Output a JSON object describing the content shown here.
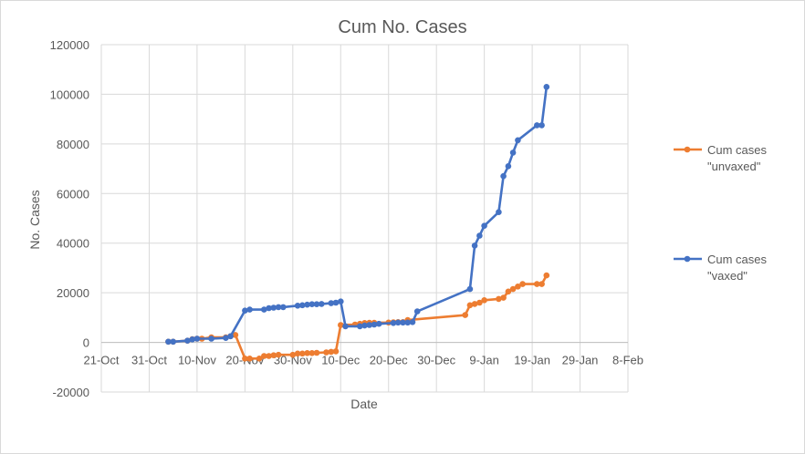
{
  "chart_data": {
    "type": "line",
    "title": "Cum No. Cases",
    "xlabel": "Date",
    "ylabel": "No. Cases",
    "x_ticks": [
      "21-Oct",
      "31-Oct",
      "10-Nov",
      "20-Nov",
      "30-Nov",
      "10-Dec",
      "20-Dec",
      "30-Dec",
      "9-Jan",
      "19-Jan",
      "29-Jan",
      "8-Feb"
    ],
    "y_ticks": [
      "120000",
      "100000",
      "80000",
      "60000",
      "40000",
      "20000",
      "0",
      "-20000"
    ],
    "ylim": [
      -20000,
      120000
    ],
    "grid": true,
    "legend_position": "right",
    "series": [
      {
        "name": "Cum cases \"unvaxed\"",
        "legend_lines": [
          "Cum cases",
          "\"unvaxed\""
        ],
        "color": "#ED7D31",
        "x": [
          "2021-11-04",
          "2021-11-05",
          "2021-11-08",
          "2021-11-09",
          "2021-11-10",
          "2021-11-11",
          "2021-11-13",
          "2021-11-16",
          "2021-11-17",
          "2021-11-18",
          "2021-11-20",
          "2021-11-21",
          "2021-11-23",
          "2021-11-24",
          "2021-11-25",
          "2021-11-26",
          "2021-11-27",
          "2021-11-30",
          "2021-12-01",
          "2021-12-02",
          "2021-12-03",
          "2021-12-04",
          "2021-12-05",
          "2021-12-07",
          "2021-12-08",
          "2021-12-09",
          "2021-12-10",
          "2021-12-13",
          "2021-12-14",
          "2021-12-15",
          "2021-12-16",
          "2021-12-17",
          "2021-12-20",
          "2021-12-21",
          "2021-12-22",
          "2021-12-23",
          "2021-12-24",
          "2022-01-05",
          "2022-01-06",
          "2022-01-07",
          "2022-01-08",
          "2022-01-09",
          "2022-01-12",
          "2022-01-13",
          "2022-01-14",
          "2022-01-15",
          "2022-01-16",
          "2022-01-17",
          "2022-01-20",
          "2022-01-21",
          "2022-01-22"
        ],
        "y": [
          300,
          300,
          700,
          1300,
          1500,
          1500,
          2000,
          2000,
          2500,
          3000,
          -6500,
          -6500,
          -6500,
          -5500,
          -5500,
          -5200,
          -5000,
          -5000,
          -4500,
          -4500,
          -4300,
          -4300,
          -4200,
          -4000,
          -3800,
          -3600,
          7000,
          7200,
          7500,
          7800,
          7900,
          7900,
          8000,
          8100,
          8200,
          8200,
          9000,
          11000,
          15000,
          15500,
          16000,
          17000,
          17500,
          18000,
          20500,
          21500,
          22500,
          23500,
          23500,
          23500,
          27000
        ]
      },
      {
        "name": "Cum cases \"vaxed\"",
        "legend_lines": [
          "Cum cases",
          "\"vaxed\""
        ],
        "color": "#4472C4",
        "x": [
          "2021-11-04",
          "2021-11-05",
          "2021-11-08",
          "2021-11-09",
          "2021-11-10",
          "2021-11-13",
          "2021-11-16",
          "2021-11-17",
          "2021-11-20",
          "2021-11-21",
          "2021-11-24",
          "2021-11-25",
          "2021-11-26",
          "2021-11-27",
          "2021-11-28",
          "2021-12-01",
          "2021-12-02",
          "2021-12-03",
          "2021-12-04",
          "2021-12-05",
          "2021-12-06",
          "2021-12-08",
          "2021-12-09",
          "2021-12-10",
          "2021-12-11",
          "2021-12-14",
          "2021-12-15",
          "2021-12-16",
          "2021-12-17",
          "2021-12-18",
          "2021-12-21",
          "2021-12-22",
          "2021-12-23",
          "2021-12-24",
          "2021-12-25",
          "2021-12-26",
          "2022-01-06",
          "2022-01-07",
          "2022-01-08",
          "2022-01-09",
          "2022-01-12",
          "2022-01-13",
          "2022-01-14",
          "2022-01-15",
          "2022-01-16",
          "2022-01-20",
          "2022-01-21",
          "2022-01-22"
        ],
        "y": [
          300,
          300,
          700,
          1200,
          1500,
          1500,
          1800,
          2500,
          12800,
          13200,
          13200,
          13800,
          14000,
          14200,
          14200,
          14800,
          15000,
          15200,
          15400,
          15400,
          15500,
          15800,
          16000,
          16500,
          6500,
          6500,
          6800,
          7000,
          7200,
          7500,
          7800,
          8000,
          8000,
          8000,
          8200,
          12500,
          21500,
          39000,
          43000,
          47000,
          52500,
          67000,
          71000,
          76500,
          81500,
          87500,
          87500,
          103000
        ]
      }
    ]
  }
}
